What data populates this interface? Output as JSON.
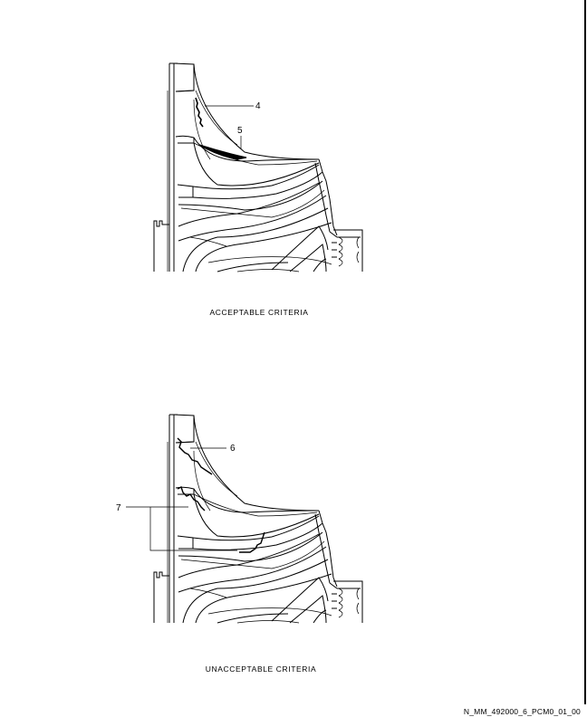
{
  "figures": [
    {
      "caption": "ACCEPTABLE CRITERIA",
      "callouts": [
        "4",
        "5"
      ]
    },
    {
      "caption": "UNACCEPTABLE CRITERIA",
      "callouts": [
        "6",
        "7"
      ]
    }
  ],
  "footer": {
    "figure_id": "N_MM_492000_6_PCM0_01_00"
  }
}
